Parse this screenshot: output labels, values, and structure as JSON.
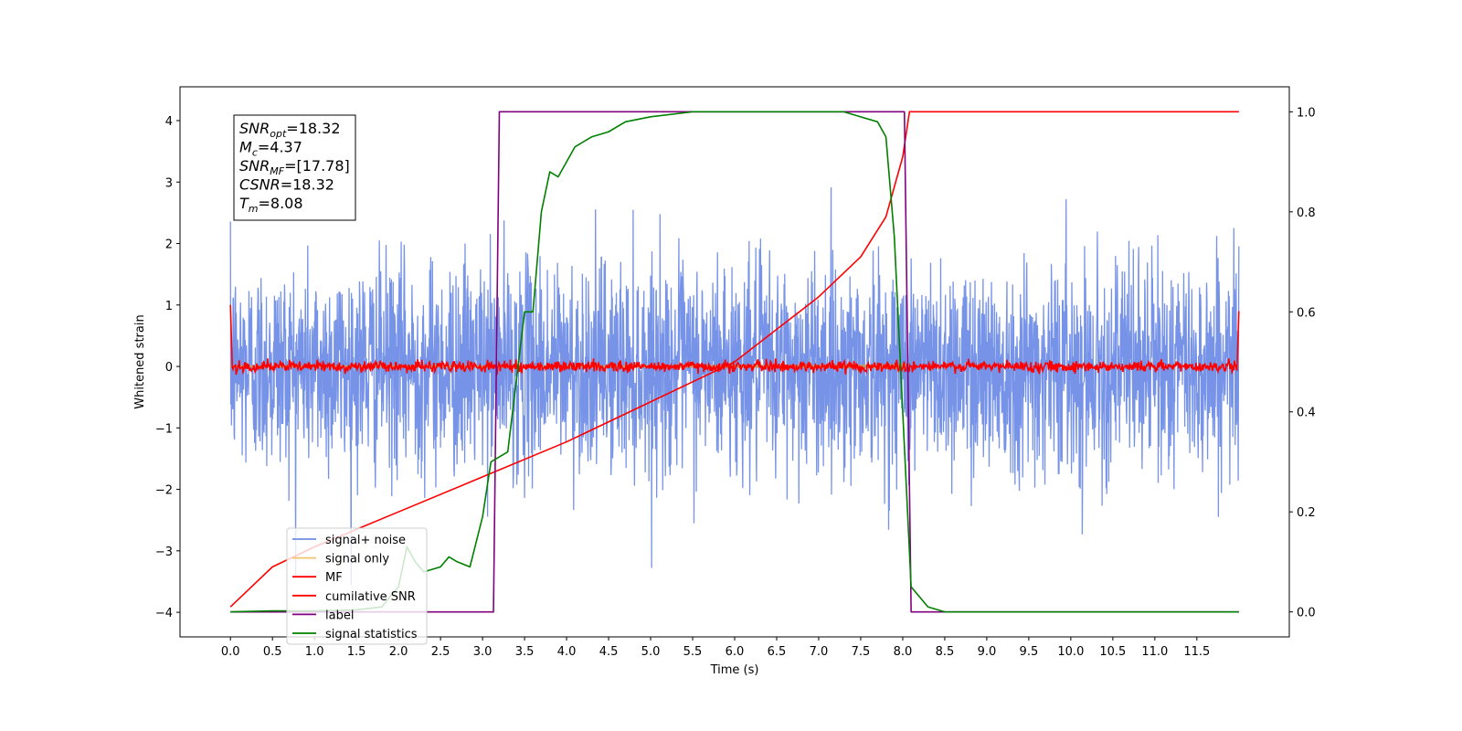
{
  "chart_data": {
    "type": "line",
    "title": "",
    "xlabel": "Time (s)",
    "ylabel": "Whitened strain",
    "xlim": [
      -0.6,
      12.6
    ],
    "ylim": [
      -4.4,
      4.55
    ],
    "y2lim": [
      -0.05,
      1.05
    ],
    "x_ticks": [
      0.0,
      0.5,
      1.0,
      1.5,
      2.0,
      2.5,
      3.0,
      3.5,
      4.0,
      4.5,
      5.0,
      5.5,
      6.0,
      6.5,
      7.0,
      7.5,
      8.0,
      8.5,
      9.0,
      9.5,
      10.0,
      10.5,
      11.0,
      11.5
    ],
    "x_tick_labels": [
      "0.0",
      "0.5",
      "1.0",
      "1.5",
      "2.0",
      "2.5",
      "3.0",
      "3.5",
      "4.0",
      "4.5",
      "5.0",
      "5.5",
      "6.0",
      "6.5",
      "7.0",
      "7.5",
      "8.0",
      "8.5",
      "9.0",
      "9.5",
      "10.0",
      "10.5",
      "11.0",
      "11.5"
    ],
    "y_ticks": [
      4,
      3,
      2,
      1,
      0,
      -1,
      -2,
      -3,
      -4
    ],
    "y_tick_labels": [
      "4",
      "3",
      "2",
      "1",
      "0",
      "−1",
      "−2",
      "−3",
      "−4"
    ],
    "y2_ticks": [
      1.0,
      0.8,
      0.6,
      0.4,
      0.2,
      0.0
    ],
    "y2_tick_labels": [
      "1.0",
      "0.8",
      "0.6",
      "0.4",
      "0.2",
      "0.0"
    ],
    "grid": false,
    "legend_position": "lower-left",
    "annotations": [
      {
        "var": "SNR",
        "sub": "opt",
        "value": "=18.32"
      },
      {
        "var": "M",
        "sub": "c",
        "value": "=4.37"
      },
      {
        "var": "SNR",
        "sub": "MF",
        "value": "=[17.78]"
      },
      {
        "var": "CSNR",
        "sub": "",
        "value": "=18.32"
      },
      {
        "var": "T",
        "sub": "m",
        "value": "=8.08"
      }
    ],
    "series": [
      {
        "name": "signal+ noise",
        "color": "#6f8de6",
        "axis": "left",
        "t_start": 0.0,
        "t_end": 12.0,
        "noise_sigma": 0.85
      },
      {
        "name": "signal only",
        "color": "#f5c26b",
        "axis": "left",
        "t_start": 0.0,
        "t_end": 8.08,
        "amplitude_start": 0.15,
        "amplitude_end": 1.0
      },
      {
        "name": "MF",
        "color": "#ff0000",
        "axis": "left",
        "t_start": 0.0,
        "t_end": 12.0,
        "level": 0.0,
        "edge_value": 1.0
      },
      {
        "name": "cumilative SNR",
        "color": "#ff0000",
        "axis": "right",
        "x": [
          0.0,
          0.5,
          1.0,
          2.0,
          3.0,
          4.0,
          5.0,
          6.0,
          7.0,
          7.5,
          7.8,
          8.0,
          8.08,
          12.0
        ],
        "y": [
          0.01,
          0.09,
          0.13,
          0.2,
          0.27,
          0.34,
          0.42,
          0.5,
          0.63,
          0.71,
          0.79,
          0.91,
          1.0,
          1.0
        ]
      },
      {
        "name": "label",
        "color": "#800080",
        "axis": "right",
        "x": [
          0.0,
          3.13,
          3.2,
          8.02,
          8.1,
          12.0
        ],
        "y": [
          0.0,
          0.0,
          1.0,
          1.0,
          0.0,
          0.0
        ]
      },
      {
        "name": "signal statistics",
        "color": "#008000",
        "axis": "right",
        "x": [
          0.0,
          0.5,
          1.0,
          1.5,
          1.8,
          2.0,
          2.1,
          2.2,
          2.3,
          2.5,
          2.6,
          2.7,
          2.85,
          3.0,
          3.1,
          3.3,
          3.5,
          3.6,
          3.7,
          3.8,
          3.9,
          4.0,
          4.1,
          4.3,
          4.5,
          4.7,
          5.0,
          5.5,
          6.0,
          6.5,
          7.0,
          7.3,
          7.5,
          7.7,
          7.8,
          7.9,
          8.0,
          8.1,
          8.3,
          8.5,
          9.0,
          12.0
        ],
        "y": [
          0.0,
          0.002,
          0.002,
          0.004,
          0.01,
          0.05,
          0.13,
          0.1,
          0.08,
          0.09,
          0.11,
          0.1,
          0.09,
          0.19,
          0.3,
          0.32,
          0.6,
          0.6,
          0.8,
          0.88,
          0.87,
          0.9,
          0.93,
          0.95,
          0.96,
          0.98,
          0.99,
          1.0,
          1.0,
          1.0,
          1.0,
          1.0,
          0.99,
          0.98,
          0.95,
          0.75,
          0.4,
          0.05,
          0.01,
          0.0,
          0.0,
          0.0
        ]
      }
    ]
  }
}
